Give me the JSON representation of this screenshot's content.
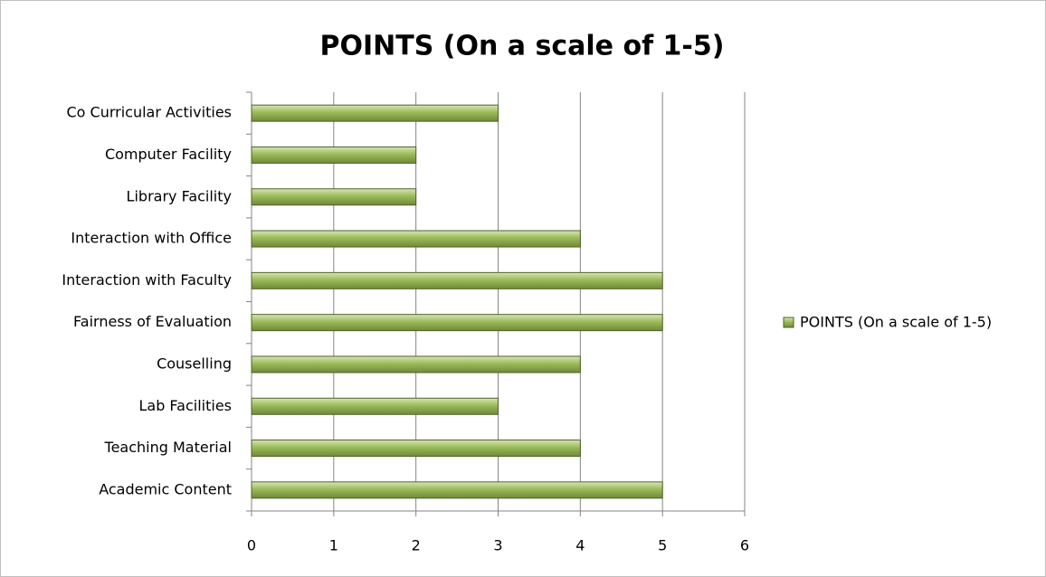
{
  "chart_data": {
    "type": "hbar",
    "title": "POINTS (On a scale of 1-5)",
    "categories": [
      "Academic Content",
      "Teaching Material",
      "Lab Facilities",
      "Couselling",
      "Fairness of Evaluation",
      "Interaction with Faculty",
      "Interaction with Office",
      "Library Facility",
      "Computer Facility",
      "Co Curricular Activities"
    ],
    "series": [
      {
        "name": "POINTS (On a scale of 1-5)",
        "color": "#9bbb59",
        "values": [
          5,
          4,
          3,
          4,
          5,
          5,
          4,
          2,
          2,
          3
        ]
      }
    ],
    "xlim": [
      0,
      6
    ],
    "xticks": [
      0,
      1,
      2,
      3,
      4,
      5,
      6
    ],
    "grid": true,
    "legend": "right"
  }
}
